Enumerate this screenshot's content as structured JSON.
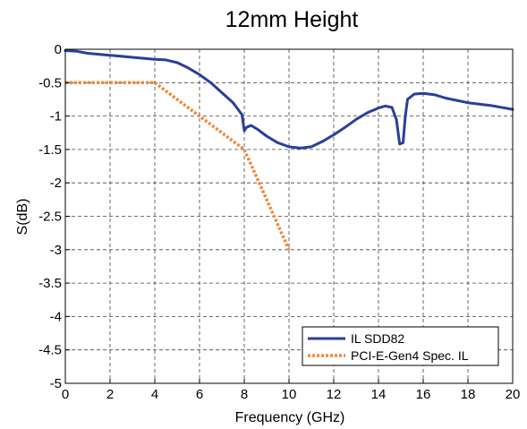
{
  "chart_data": {
    "type": "line",
    "title": "12mm Height",
    "xlabel": "Frequency (GHz)",
    "ylabel": "S(dB)",
    "xlim": [
      0,
      20
    ],
    "ylim": [
      -5,
      0
    ],
    "x_ticks": [
      0,
      2,
      4,
      6,
      8,
      10,
      12,
      14,
      16,
      18,
      20
    ],
    "x_tick_labels": [
      "0",
      "2",
      "4",
      "6",
      "8",
      "10",
      "12",
      "14",
      "16",
      "18",
      "20"
    ],
    "y_ticks": [
      0,
      -0.5,
      -1,
      -1.5,
      -2,
      -2.5,
      -3,
      -3.5,
      -4,
      -4.5,
      -5
    ],
    "y_tick_labels": [
      "0",
      "-0.5",
      "-1",
      "-1.5",
      "-2",
      "-2.5",
      "-3",
      "-3.5",
      "-4",
      "-4.5",
      "-5"
    ],
    "grid": true,
    "legend_position": "bottom-right",
    "series": [
      {
        "name": "IL SDD82",
        "color": "#2a3f99",
        "style": "solid",
        "points": [
          [
            0,
            -0.02
          ],
          [
            0.5,
            -0.03
          ],
          [
            1,
            -0.06
          ],
          [
            2,
            -0.09
          ],
          [
            3,
            -0.12
          ],
          [
            4,
            -0.15
          ],
          [
            4.5,
            -0.16
          ],
          [
            5,
            -0.2
          ],
          [
            5.5,
            -0.28
          ],
          [
            6,
            -0.38
          ],
          [
            6.5,
            -0.5
          ],
          [
            7,
            -0.65
          ],
          [
            7.5,
            -0.8
          ],
          [
            7.9,
            -0.98
          ],
          [
            8.0,
            -1.22
          ],
          [
            8.1,
            -1.17
          ],
          [
            8.3,
            -1.14
          ],
          [
            8.6,
            -1.2
          ],
          [
            9,
            -1.3
          ],
          [
            9.5,
            -1.4
          ],
          [
            10,
            -1.46
          ],
          [
            10.5,
            -1.48
          ],
          [
            11,
            -1.46
          ],
          [
            11.5,
            -1.38
          ],
          [
            12,
            -1.28
          ],
          [
            12.5,
            -1.17
          ],
          [
            13,
            -1.05
          ],
          [
            13.5,
            -0.95
          ],
          [
            14,
            -0.88
          ],
          [
            14.3,
            -0.85
          ],
          [
            14.6,
            -0.87
          ],
          [
            14.8,
            -1.05
          ],
          [
            14.95,
            -1.42
          ],
          [
            15.1,
            -1.4
          ],
          [
            15.2,
            -1.0
          ],
          [
            15.3,
            -0.75
          ],
          [
            15.6,
            -0.67
          ],
          [
            16,
            -0.66
          ],
          [
            16.5,
            -0.68
          ],
          [
            17,
            -0.73
          ],
          [
            18,
            -0.8
          ],
          [
            19,
            -0.84
          ],
          [
            20,
            -0.9
          ]
        ]
      },
      {
        "name": "PCI-E-Gen4 Spec. IL",
        "color": "#f08a3c",
        "style": "dotted",
        "points": [
          [
            0,
            -0.5
          ],
          [
            4,
            -0.5
          ],
          [
            8,
            -1.5
          ],
          [
            10,
            -3
          ]
        ]
      }
    ]
  }
}
